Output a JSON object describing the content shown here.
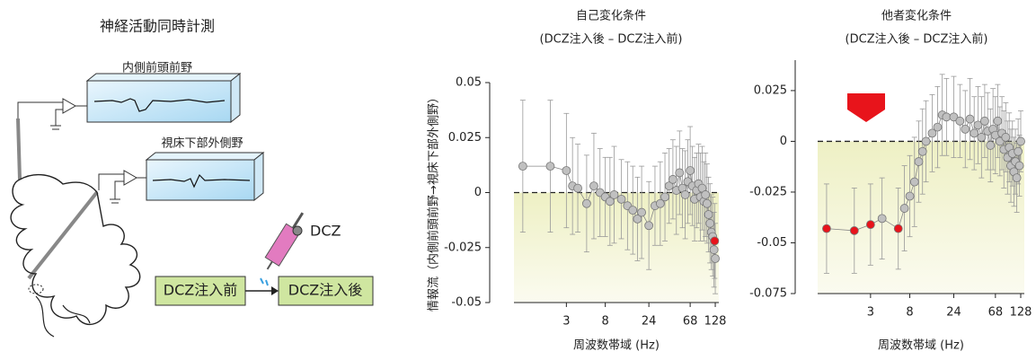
{
  "diagram": {
    "title": "神経活動同時計測",
    "region1": "内側前頭前野",
    "region2": "視床下部外側野",
    "drug": "DCZ",
    "before": "DCZ注入前",
    "after": "DCZ注入後"
  },
  "chart_data": [
    {
      "type": "scatter",
      "title": "自己変化条件",
      "subtitle": "(DCZ注入後 – DCZ注入前)",
      "xlabel": "周波数帯域 (Hz)",
      "ylabel": "情報流（内側前頭前野→視床下部外側野）",
      "xscale": "log",
      "xlim": [
        0.8,
        140
      ],
      "xticks": [
        3,
        8,
        24,
        68,
        128
      ],
      "ylim": [
        -0.05,
        0.05
      ],
      "yticks": [
        -0.05,
        -0.025,
        0,
        0.025,
        0.05
      ],
      "series": [
        {
          "color": "#c0c0c0",
          "x": [
            1,
            2,
            3,
            3.5,
            4,
            5,
            6,
            7,
            8,
            9,
            10,
            12,
            14,
            16,
            18,
            20,
            24,
            28,
            32,
            36,
            40,
            44,
            48,
            52,
            56,
            60,
            64,
            68,
            72,
            76,
            80,
            84,
            88,
            92,
            96,
            100,
            104,
            108,
            112,
            116,
            120,
            124,
            128
          ],
          "values": [
            0.012,
            0.012,
            0.01,
            0.003,
            0.002,
            -0.005,
            0.003,
            0,
            -0.002,
            -0.004,
            -0.001,
            -0.003,
            -0.006,
            -0.008,
            -0.012,
            -0.009,
            -0.015,
            -0.006,
            -0.005,
            -0.002,
            0.003,
            0.006,
            0.001,
            0.009,
            0.002,
            -0.001,
            0.005,
            0.01,
            0.003,
            -0.003,
            0.001,
            0.004,
            -0.002,
            0.002,
            -0.004,
            -0.001,
            -0.005,
            -0.01,
            -0.014,
            -0.018,
            -0.02,
            -0.026,
            -0.03
          ],
          "errors": [
            0.03,
            0.03,
            0.026,
            0.022,
            0.02,
            0.022,
            0.024,
            0.02,
            0.018,
            0.02,
            0.022,
            0.018,
            0.02,
            0.02,
            0.019,
            0.021,
            0.02,
            0.018,
            0.019,
            0.02,
            0.017,
            0.018,
            0.02,
            0.019,
            0.018,
            0.02,
            0.019,
            0.02,
            0.018,
            0.019,
            0.017,
            0.018,
            0.02,
            0.019,
            0.018,
            0.019,
            0.018,
            0.017,
            0.018,
            0.017,
            0.018,
            0.017,
            0.016
          ]
        },
        {
          "color": "#e8141b",
          "x": [
            126
          ],
          "values": [
            -0.022
          ],
          "errors": [
            0.017
          ]
        }
      ]
    },
    {
      "type": "scatter",
      "title": "他者変化条件",
      "subtitle": "(DCZ注入後 – DCZ注入前)",
      "xlabel": "周波数帯域 (Hz)",
      "xscale": "log",
      "xlim": [
        0.8,
        140
      ],
      "xticks": [
        3,
        8,
        24,
        68,
        128
      ],
      "ylim": [
        -0.075,
        0.04
      ],
      "yticks": [
        -0.075,
        -0.05,
        -0.025,
        0,
        0.025
      ],
      "series": [
        {
          "color": "#c0c0c0",
          "x": [
            4,
            7,
            8,
            9,
            10,
            11,
            12,
            14,
            16,
            18,
            20,
            24,
            28,
            32,
            36,
            40,
            44,
            48,
            52,
            56,
            60,
            64,
            68,
            72,
            76,
            80,
            84,
            88,
            92,
            96,
            100,
            104,
            108,
            112,
            116,
            120,
            124,
            128
          ],
          "values": [
            -0.038,
            -0.033,
            -0.027,
            -0.02,
            -0.01,
            -0.005,
            0,
            0.004,
            0.007,
            0.013,
            0.012,
            0.012,
            0.01,
            0.006,
            0.011,
            0.004,
            0.008,
            0.002,
            0.01,
            0.005,
            -0.002,
            0.006,
            0.003,
            0.01,
            0,
            0.004,
            -0.004,
            0.002,
            -0.008,
            -0.003,
            -0.012,
            -0.006,
            -0.015,
            -0.01,
            -0.018,
            -0.005,
            -0.012,
            0
          ],
          "errors": [
            0.02,
            0.021,
            0.02,
            0.022,
            0.02,
            0.021,
            0.02,
            0.019,
            0.02,
            0.02,
            0.019,
            0.02,
            0.018,
            0.019,
            0.02,
            0.018,
            0.019,
            0.02,
            0.018,
            0.019,
            0.018,
            0.02,
            0.019,
            0.018,
            0.017,
            0.018,
            0.019,
            0.017,
            0.018,
            0.017,
            0.018,
            0.016,
            0.017,
            0.016,
            0.017,
            0.016,
            0.015,
            0.015
          ]
        },
        {
          "color": "#e8141b",
          "x": [
            1,
            2,
            3,
            6
          ],
          "values": [
            -0.043,
            -0.044,
            -0.041,
            -0.043
          ],
          "errors": [
            0.022,
            0.021,
            0.02,
            0.02
          ]
        }
      ]
    }
  ]
}
